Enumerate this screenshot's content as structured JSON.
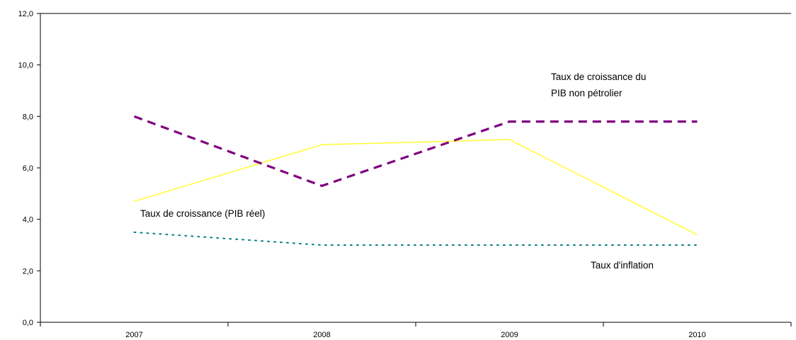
{
  "chart_data": {
    "type": "line",
    "categories": [
      "2007",
      "2008",
      "2009",
      "2010"
    ],
    "ylim": [
      0,
      12
    ],
    "yticks": [
      "0,0",
      "2,0",
      "4,0",
      "6,0",
      "8,0",
      "10,0",
      "12,0"
    ],
    "grid": false,
    "legend": "none",
    "series": [
      {
        "key": "pib-reel",
        "name": "Taux de croissance (PIB réel)",
        "values": [
          4.7,
          6.9,
          7.1,
          3.4
        ],
        "color": "#ffff33",
        "dash": "solid"
      },
      {
        "key": "pib-non-petrolier",
        "name": "Taux de croissance du PIB non pétrolier",
        "values": [
          8.0,
          5.3,
          7.8,
          7.8
        ],
        "color": "#800080",
        "dash": "dashed"
      },
      {
        "key": "inflation",
        "name": "Taux d'inflation",
        "values": [
          3.5,
          3.0,
          3.0,
          3.0
        ],
        "color": "#008080",
        "dash": "dotted"
      }
    ],
    "annotations": {
      "pib_non_petrolier_line1": "Taux de croissance du",
      "pib_non_petrolier_line2": "PIB non pétrolier",
      "pib_reel": "Taux de croissance (PIB réel)",
      "inflation": "Taux d'inflation"
    }
  }
}
